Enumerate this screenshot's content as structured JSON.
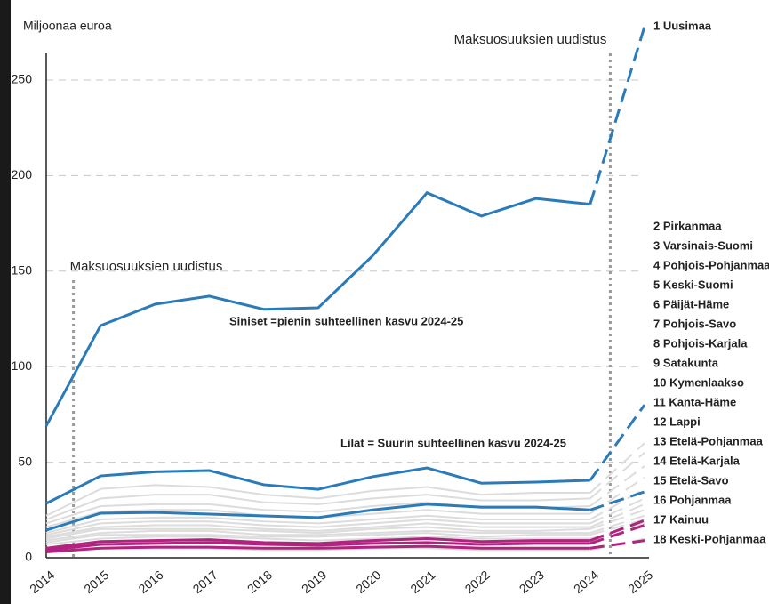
{
  "chart_data": {
    "type": "line",
    "y_label": "Miljoonaa euroa",
    "annotations": [
      "Maksuosuuksien uudistus",
      "Maksuosuuksien uudistus"
    ],
    "notes": [
      {
        "text": "Siniset =pienin suhteellinen kasvu 2024-25",
        "color": "#2b63b0"
      },
      {
        "text": "Lilat = Suurin suhteellinen kasvu 2024-25",
        "color": "#b0237f"
      }
    ],
    "categories": [
      "2014",
      "2015",
      "2016",
      "2017",
      "2018",
      "2019",
      "2020",
      "2021",
      "2022",
      "2023",
      "2024",
      "2025"
    ],
    "ylim": [
      0,
      265
    ],
    "yticks": [
      0,
      50,
      100,
      150,
      200,
      250
    ],
    "grid": true,
    "series": [
      {
        "name": "1 Uusimaa",
        "color": "#2b7bb9",
        "label_color": "#2b63b0",
        "values": [
          69,
          121.5,
          132.7,
          136.9,
          130,
          130.8,
          158,
          191,
          178.8,
          188,
          185,
          278
        ]
      },
      {
        "name": "2 Pirkanmaa",
        "color": "#2b7bb9",
        "label_color": "#2b63b0",
        "values": [
          28.4,
          42.8,
          45,
          45.6,
          38.2,
          35.8,
          42.4,
          47,
          39,
          39.6,
          40.5,
          80
        ]
      },
      {
        "name": "3 Varsinais-Suomi",
        "color": "#dcdcdc",
        "label_color": "#777777",
        "values": [
          22,
          36,
          38,
          37,
          33,
          31,
          35,
          37,
          33,
          34,
          34,
          60
        ]
      },
      {
        "name": "4 Pohjois-Pohjanmaa",
        "color": "#dcdcdc",
        "label_color": "#777777",
        "values": [
          20,
          31,
          33,
          33,
          29,
          28,
          31,
          33,
          30,
          30,
          31,
          55
        ]
      },
      {
        "name": "5 Keski-Suomi",
        "color": "#dcdcdc",
        "label_color": "#777777",
        "values": [
          18,
          27,
          28,
          28,
          25,
          24,
          27,
          29,
          26,
          26,
          27,
          48
        ]
      },
      {
        "name": "6 Päijät-Häme",
        "color": "#2b7bb9",
        "label_color": "#2b63b0",
        "values": [
          14.4,
          23.3,
          23.7,
          22.8,
          21.9,
          21,
          25,
          28,
          26.5,
          26.5,
          25,
          34.5
        ]
      },
      {
        "name": "7 Pohjois-Savo",
        "color": "#dcdcdc",
        "label_color": "#777777",
        "values": [
          16,
          24,
          25,
          25,
          22,
          21,
          23,
          25,
          23,
          23,
          23,
          42
        ]
      },
      {
        "name": "8 Pohjois-Karjala",
        "color": "#dcdcdc",
        "label_color": "#777777",
        "values": [
          13,
          20,
          21,
          21,
          19,
          18,
          20,
          22,
          20,
          20,
          20,
          36
        ]
      },
      {
        "name": "9 Satakunta",
        "color": "#dcdcdc",
        "label_color": "#777777",
        "values": [
          12,
          18,
          19,
          19,
          17,
          16,
          18,
          20,
          18,
          18,
          18,
          31
        ]
      },
      {
        "name": "10 Kymenlaakso",
        "color": "#dcdcdc",
        "label_color": "#777777",
        "values": [
          11,
          16,
          17,
          17,
          15,
          14,
          16,
          18,
          16,
          16,
          16,
          28
        ]
      },
      {
        "name": "11 Kanta-Häme",
        "color": "#dcdcdc",
        "label_color": "#777777",
        "values": [
          10,
          15,
          15,
          15,
          14,
          13,
          15,
          16,
          14,
          14,
          15,
          25
        ]
      },
      {
        "name": "12 Lappi",
        "color": "#dcdcdc",
        "label_color": "#777777",
        "values": [
          9,
          13,
          14,
          14,
          12,
          12,
          13,
          14,
          13,
          13,
          13,
          22
        ]
      },
      {
        "name": "13 Etelä-Pohjanmaa",
        "color": "#b0237f",
        "label_color": "#b0237f",
        "values": [
          5,
          8.5,
          9,
          9.5,
          8,
          7.5,
          9,
          10,
          8.5,
          9,
          9,
          19.5
        ]
      },
      {
        "name": "14 Etelä-Karjala",
        "color": "#dcdcdc",
        "label_color": "#777777",
        "values": [
          8,
          12,
          12,
          12,
          11,
          11,
          12,
          13,
          11,
          12,
          12,
          20
        ]
      },
      {
        "name": "15 Etelä-Savo",
        "color": "#dcdcdc",
        "label_color": "#777777",
        "values": [
          7,
          10,
          11,
          11,
          10,
          9,
          10,
          11,
          10,
          10,
          10,
          18
        ]
      },
      {
        "name": "16 Pohjanmaa",
        "color": "#b0237f",
        "label_color": "#b0237f",
        "values": [
          4,
          7,
          7.5,
          8,
          7,
          6.5,
          7.5,
          8,
          7,
          7.5,
          7.5,
          17
        ]
      },
      {
        "name": "17 Kainuu",
        "color": "#b0237f",
        "label_color": "#b0237f",
        "values": [
          3,
          5,
          5.5,
          5.5,
          5,
          5,
          5.5,
          6,
          5,
          5,
          5,
          9
        ]
      },
      {
        "name": "18 Keski-Pohjanmaa",
        "color": "#dcdcdc",
        "label_color": "#777777",
        "values": [
          3,
          5,
          5,
          5,
          4,
          4,
          5,
          5,
          4,
          4,
          4,
          10
        ]
      }
    ]
  }
}
